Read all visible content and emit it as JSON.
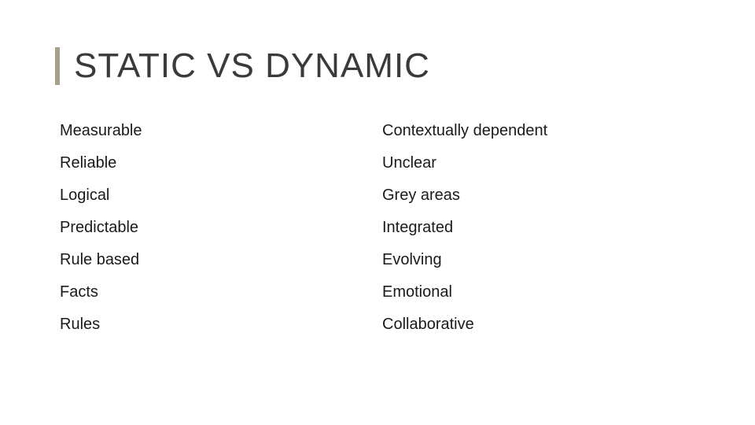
{
  "colors": {
    "accent": "#a6a08a",
    "title": "#3a3a3a",
    "text": "#1a1a1a",
    "background": "#ffffff"
  },
  "title": "STATIC VS DYNAMIC",
  "rows": [
    {
      "left": "Measurable",
      "right": "Contextually dependent"
    },
    {
      "left": "Reliable",
      "right": "Unclear"
    },
    {
      "left": "Logical",
      "right": "Grey areas"
    },
    {
      "left": "Predictable",
      "right": "Integrated"
    },
    {
      "left": "Rule based",
      "right": "Evolving"
    },
    {
      "left": "Facts",
      "right": "Emotional"
    },
    {
      "left": "Rules",
      "right": "Collaborative"
    }
  ]
}
